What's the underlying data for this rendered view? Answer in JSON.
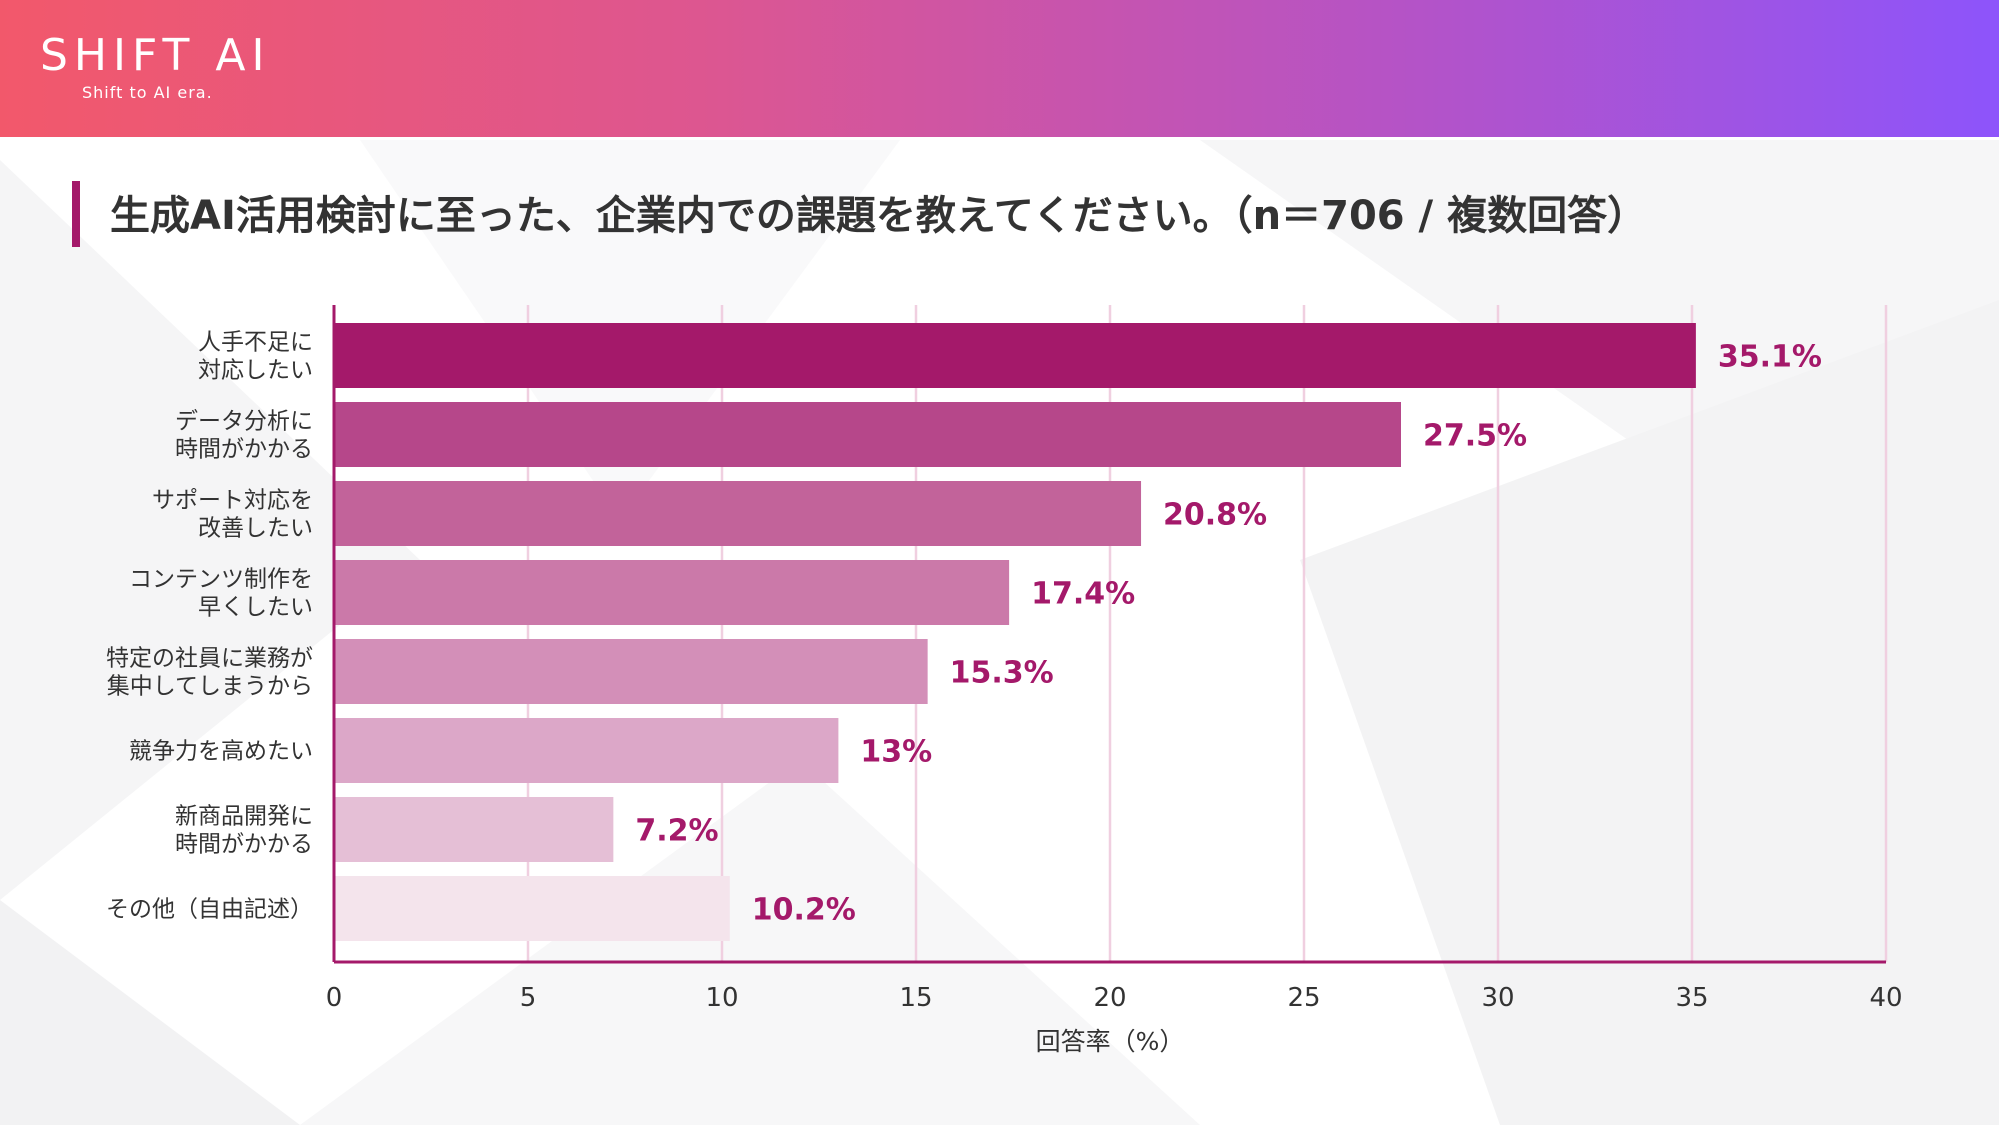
{
  "brand": {
    "logo": "SHIFT AI",
    "tagline": "Shift to AI era."
  },
  "colors": {
    "accent": "#a4196a",
    "bar_colors": [
      "#a4196a",
      "#b6478a",
      "#c2639a",
      "#cb79a9",
      "#d38fb8",
      "#dca7c8",
      "#e5bfd6",
      "#f4e4ec"
    ]
  },
  "chart_data": {
    "type": "bar",
    "orientation": "horizontal",
    "title": "生成AI活用検討に至った、企業内での課題を教えてください。（n＝706 / 複数回答）",
    "categories": [
      [
        "人手不足に",
        "対応したい"
      ],
      [
        "データ分析に",
        "時間がかかる"
      ],
      [
        "サポート対応を",
        "改善したい"
      ],
      [
        "コンテンツ制作を",
        "早くしたい"
      ],
      [
        "特定の社員に業務が",
        "集中してしまうから"
      ],
      [
        "競争力を高めたい"
      ],
      [
        "新商品開発に",
        "時間がかかる"
      ],
      [
        "その他（自由記述）"
      ]
    ],
    "values": [
      35.1,
      27.5,
      20.8,
      17.4,
      15.3,
      13,
      7.2,
      10.2
    ],
    "value_labels": [
      "35.1%",
      "27.5%",
      "20.8%",
      "17.4%",
      "15.3%",
      "13%",
      "7.2%",
      "10.2%"
    ],
    "xlabel": "回答率（%）",
    "ylabel": "",
    "xlim": [
      0,
      40
    ],
    "xticks": [
      0,
      5,
      10,
      15,
      20,
      25,
      30,
      35,
      40
    ],
    "grid": true,
    "legend": "none"
  }
}
